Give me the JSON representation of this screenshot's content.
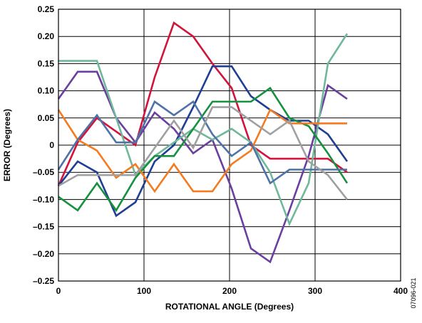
{
  "chart_data": {
    "type": "line",
    "title": "",
    "xlabel": "ROTATIONAL ANGLE (Degrees)",
    "ylabel": "ERROR (Degrees)",
    "xlim": [
      0,
      400
    ],
    "ylim": [
      -0.25,
      0.25
    ],
    "x_ticks": [
      {
        "value": 0,
        "label": "0"
      },
      {
        "value": 100,
        "label": "100"
      },
      {
        "value": 200,
        "label": "200"
      },
      {
        "value": 300,
        "label": "300"
      },
      {
        "value": 400,
        "label": "400"
      }
    ],
    "y_ticks": [
      {
        "value": 0.25,
        "label": "0.25"
      },
      {
        "value": 0.2,
        "label": "0.20"
      },
      {
        "value": 0.15,
        "label": "0.15"
      },
      {
        "value": 0.1,
        "label": "0.10"
      },
      {
        "value": 0.05,
        "label": "0.05"
      },
      {
        "value": 0,
        "label": "0"
      },
      {
        "value": -0.05,
        "label": "–0.05"
      },
      {
        "value": -0.1,
        "label": "–0.10"
      },
      {
        "value": -0.15,
        "label": "–0.15"
      },
      {
        "value": -0.2,
        "label": "–0.20"
      },
      {
        "value": -0.25,
        "label": "–0.25"
      }
    ],
    "grid": true,
    "legend": "none",
    "x": [
      0,
      22.5,
      45,
      67.5,
      90,
      112.5,
      135,
      157.5,
      180,
      202.5,
      225,
      247.5,
      270,
      292.5,
      315,
      337.5
    ],
    "series": [
      {
        "color": "#d2143c",
        "values": [
          -0.075,
          0.005,
          0.05,
          0.025,
          0.0,
          0.125,
          0.225,
          0.2,
          0.15,
          0.105,
          0.0,
          -0.025,
          -0.025,
          -0.025,
          -0.025,
          -0.05
        ]
      },
      {
        "color": "#1f3f94",
        "values": [
          -0.075,
          -0.03,
          -0.05,
          -0.13,
          -0.105,
          -0.03,
          0.0,
          0.07,
          0.145,
          0.145,
          0.09,
          0.065,
          0.045,
          0.045,
          0.02,
          -0.03
        ]
      },
      {
        "color": "#6b3fa0",
        "values": [
          0.085,
          0.135,
          0.135,
          0.05,
          0.005,
          0.06,
          0.03,
          -0.015,
          0.01,
          -0.08,
          -0.19,
          -0.215,
          -0.12,
          -0.02,
          0.11,
          0.085
        ]
      },
      {
        "color": "#6fb99a",
        "values": [
          0.155,
          0.155,
          0.155,
          0.05,
          -0.055,
          -0.02,
          0.005,
          0.03,
          0.01,
          0.03,
          0.005,
          -0.05,
          -0.145,
          -0.07,
          0.15,
          0.205
        ]
      },
      {
        "color": "#15913f",
        "values": [
          -0.095,
          -0.12,
          -0.07,
          -0.12,
          -0.06,
          -0.02,
          -0.02,
          0.03,
          0.08,
          0.08,
          0.08,
          0.105,
          0.05,
          0.035,
          -0.015,
          -0.07
        ]
      },
      {
        "color": "#f47b20",
        "values": [
          0.065,
          0.01,
          -0.01,
          -0.06,
          -0.035,
          -0.085,
          -0.035,
          -0.085,
          -0.085,
          -0.035,
          -0.01,
          0.065,
          0.04,
          0.04,
          0.04,
          0.04
        ]
      },
      {
        "color": "#4f73a8",
        "values": [
          -0.045,
          0.01,
          0.055,
          0.005,
          0.005,
          0.08,
          0.055,
          0.08,
          0.02,
          -0.02,
          0.005,
          -0.07,
          -0.045,
          -0.045,
          -0.045,
          -0.045
        ]
      },
      {
        "color": "#a0a0a0",
        "values": [
          -0.075,
          -0.055,
          -0.055,
          -0.055,
          -0.055,
          -0.005,
          0.045,
          -0.005,
          0.07,
          0.07,
          0.045,
          0.02,
          0.045,
          -0.03,
          -0.055,
          -0.1
        ]
      }
    ]
  },
  "figure_id": "07096-021"
}
